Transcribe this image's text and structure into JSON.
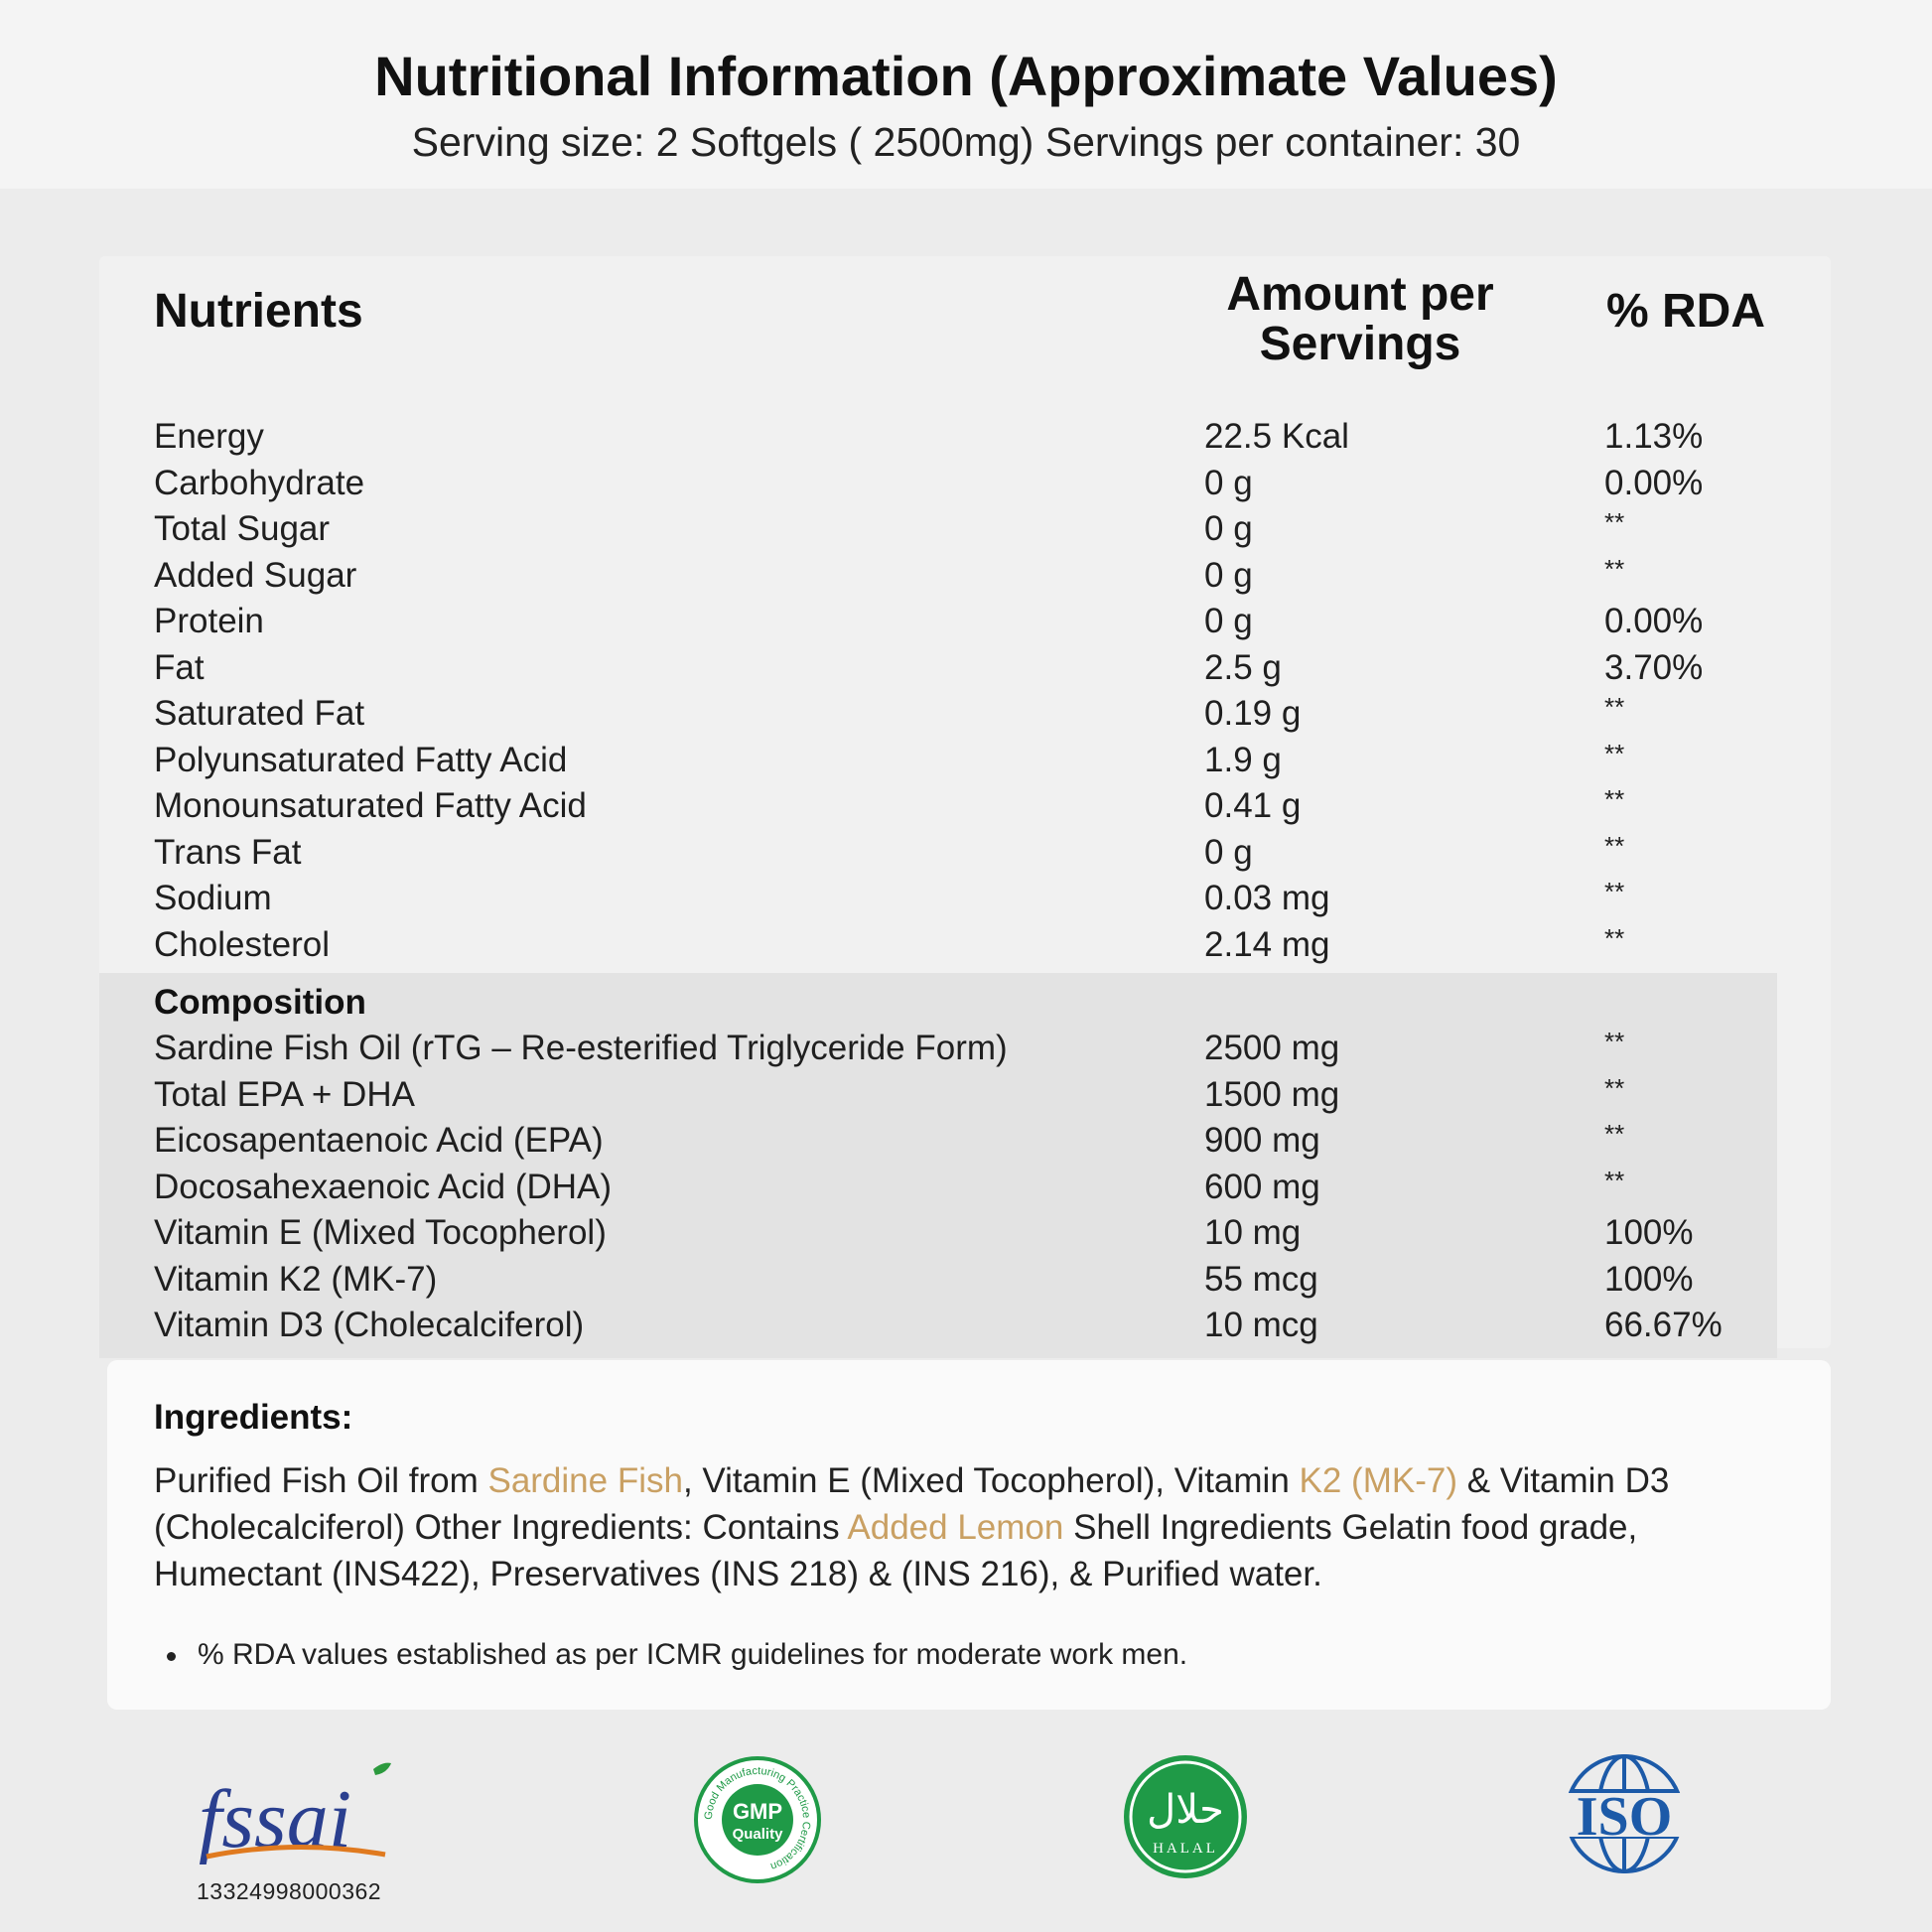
{
  "header": {
    "title": "Nutritional Information (Approximate Values)",
    "subtitle": "Serving size: 2 Softgels ( 2500mg) Servings per container: 30"
  },
  "table": {
    "col_nutrients": "Nutrients",
    "col_amount_line1": "Amount per",
    "col_amount_line2": "Servings",
    "col_rda": "% RDA",
    "rows": [
      {
        "name": "Energy",
        "amount": "22.5 Kcal",
        "rda": "1.13%"
      },
      {
        "name": "Carbohydrate",
        "amount": "0 g",
        "rda": "0.00%"
      },
      {
        "name": "Total Sugar",
        "amount": "0 g",
        "rda": "**"
      },
      {
        "name": "Added Sugar",
        "amount": "0 g",
        "rda": "**"
      },
      {
        "name": "Protein",
        "amount": "0 g",
        "rda": "0.00%"
      },
      {
        "name": "Fat",
        "amount": "2.5 g",
        "rda": "3.70%"
      },
      {
        "name": "Saturated Fat",
        "amount": "0.19 g",
        "rda": "**"
      },
      {
        "name": "Polyunsaturated Fatty Acid",
        "amount": "1.9 g",
        "rda": "**"
      },
      {
        "name": "Monounsaturated Fatty Acid",
        "amount": "0.41 g",
        "rda": "**"
      },
      {
        "name": "Trans Fat",
        "amount": "0 g",
        "rda": "**"
      },
      {
        "name": "Sodium",
        "amount": "0.03 mg",
        "rda": "**"
      },
      {
        "name": "Cholesterol",
        "amount": "2.14 mg",
        "rda": "**"
      }
    ],
    "composition_title": "Composition",
    "composition_rows": [
      {
        "name": "Sardine Fish Oil (rTG – Re-esterified Triglyceride Form)",
        "amount": "2500 mg",
        "rda": "**"
      },
      {
        "name": "Total EPA + DHA",
        "amount": "1500 mg",
        "rda": "**"
      },
      {
        "name": "Eicosapentaenoic Acid (EPA)",
        "amount": "900 mg",
        "rda": "**"
      },
      {
        "name": "Docosahexaenoic Acid (DHA)",
        "amount": "600 mg",
        "rda": "**"
      },
      {
        "name": "Vitamin E (Mixed Tocopherol)",
        "amount": "10 mg",
        "rda": "100%"
      },
      {
        "name": "Vitamin K2 (MK-7)",
        "amount": "55 mcg",
        "rda": "100%"
      },
      {
        "name": "Vitamin D3 (Cholecalciferol)",
        "amount": "10 mcg",
        "rda": "66.67%"
      }
    ]
  },
  "ingredients": {
    "title": "Ingredients:",
    "t1": "Purified Fish Oil from ",
    "h1": "Sardine Fish",
    "t2": ", Vitamin E (Mixed Tocopherol), Vitamin ",
    "h2": "K2 (MK-7)",
    "t3": " & Vitamin D3 (Cholecalciferol) Other Ingredients: Contains ",
    "h3": "Added Lemon",
    "t4": " Shell Ingredients Gelatin food grade, Humectant (INS422), Preservatives (INS 218) & (INS 216), & Purified water.",
    "highlight_color": "#c9a063"
  },
  "note": "% RDA values established as per ICMR guidelines for moderate work men.",
  "logos": {
    "fssai_text": "fssai",
    "fssai_number": "13324998000362",
    "gmp_center_1": "GMP",
    "gmp_center_2": "Quality",
    "gmp_ring": "Good Manufacturing Practice Certification",
    "halal_arabic": "حلال",
    "halal_text": "HALAL",
    "iso_text": "ISO",
    "green": "#1f9a47",
    "iso_blue": "#1c5aa8"
  }
}
